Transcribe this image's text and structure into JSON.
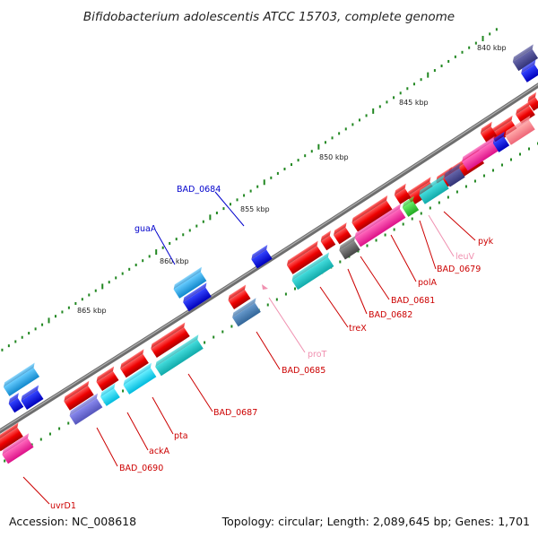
{
  "title": "Bifidobacterium adolescentis ATCC 15703, complete genome",
  "footer": {
    "accession": "Accession: NC_008618",
    "topology": "Topology: circular; Length: 2,089,645 bp; Genes: 1,701"
  },
  "ticks": [
    "840 kbp",
    "845 kbp",
    "850 kbp",
    "855 kbp",
    "860 kbp",
    "865 kbp"
  ],
  "colors": {
    "backbone": "#777777",
    "label_red": "#cc0000",
    "label_blue": "#0000cc",
    "label_pink": "#f090b0",
    "tick_dots": "#228822"
  },
  "labels": [
    {
      "text": "BAD_0684",
      "color": "blue"
    },
    {
      "text": "guaA",
      "color": "blue"
    },
    {
      "text": "pyk",
      "color": "red"
    },
    {
      "text": "leuV",
      "color": "pink"
    },
    {
      "text": "BAD_0679",
      "color": "red"
    },
    {
      "text": "polA",
      "color": "red"
    },
    {
      "text": "BAD_0681",
      "color": "red"
    },
    {
      "text": "BAD_0682",
      "color": "red"
    },
    {
      "text": "treX",
      "color": "red"
    },
    {
      "text": "proT",
      "color": "pink"
    },
    {
      "text": "BAD_0685",
      "color": "red"
    },
    {
      "text": "BAD_0687",
      "color": "red"
    },
    {
      "text": "pta",
      "color": "red"
    },
    {
      "text": "ackA",
      "color": "red"
    },
    {
      "text": "BAD_0690",
      "color": "red"
    },
    {
      "text": "uvrD1",
      "color": "red"
    }
  ]
}
